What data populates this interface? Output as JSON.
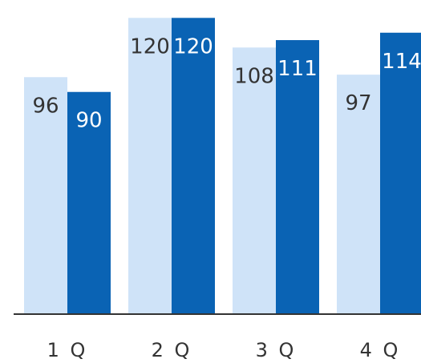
{
  "chart_data": {
    "type": "bar",
    "title": "",
    "xlabel": "",
    "ylabel": "",
    "categories": [
      "1Q",
      "2Q",
      "3Q",
      "4Q"
    ],
    "series": [
      {
        "values": [
          96,
          120,
          108,
          97
        ],
        "color": "#cfe3f8",
        "label_color": "#333333"
      },
      {
        "values": [
          90,
          120,
          111,
          114
        ],
        "color": "#0a63b4",
        "label_color": "#ffffff"
      }
    ],
    "ylim": [
      0,
      124
    ],
    "tick_labels": [
      "1 Q",
      "2 Q",
      "3 Q",
      "4 Q"
    ],
    "axis_color": "#333333",
    "grid": false,
    "legend": "none"
  }
}
